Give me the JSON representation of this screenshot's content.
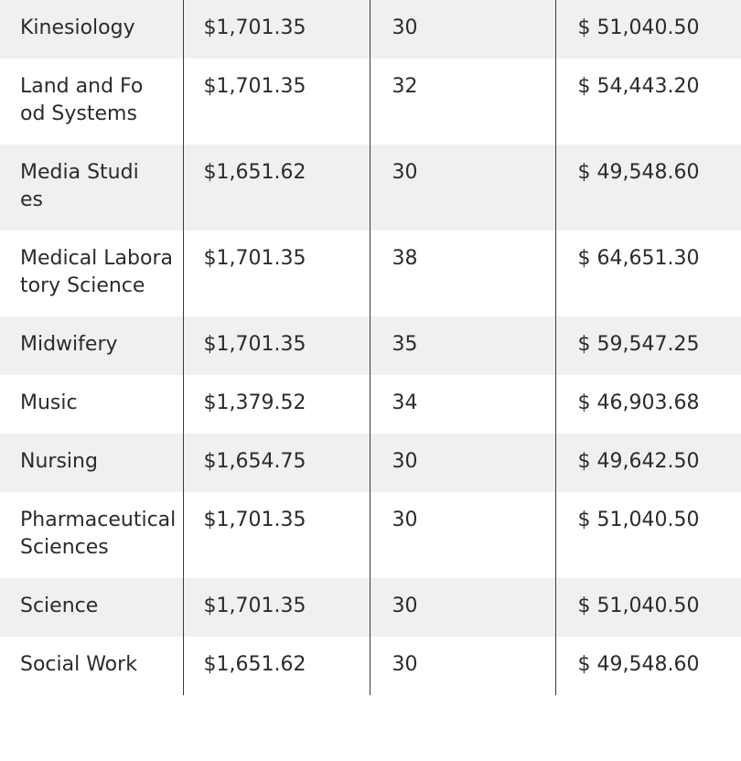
{
  "rows": [
    {
      "program": "Kinesiology",
      "per_credit": "$1,701.35",
      "credits": "30",
      "total": "$ 51,040.50"
    },
    {
      "program": "Land and Food Systems",
      "per_credit": "$1,701.35",
      "credits": "32",
      "total": "$ 54,443.20"
    },
    {
      "program": "Media Studies",
      "per_credit": "$1,651.62",
      "credits": "30",
      "total": "$ 49,548.60"
    },
    {
      "program": "Medical Laboratory Science",
      "per_credit": "$1,701.35",
      "credits": "38",
      "total": "$ 64,651.30"
    },
    {
      "program": "Midwifery",
      "per_credit": "$1,701.35",
      "credits": "35",
      "total": "$ 59,547.25"
    },
    {
      "program": "Music",
      "per_credit": "$1,379.52",
      "credits": "34",
      "total": "$ 46,903.68"
    },
    {
      "program": "Nursing",
      "per_credit": "$1,654.75",
      "credits": "30",
      "total": "$ 49,642.50"
    },
    {
      "program": "Pharmaceutical Sciences",
      "per_credit": "$1,701.35",
      "credits": "30",
      "total": "$ 51,040.50"
    },
    {
      "program": "Science",
      "per_credit": "$1,701.35",
      "credits": "30",
      "total": "$ 51,040.50"
    },
    {
      "program": "Social Work",
      "per_credit": "$1,651.62",
      "credits": "30",
      "total": "$ 49,548.60"
    }
  ]
}
